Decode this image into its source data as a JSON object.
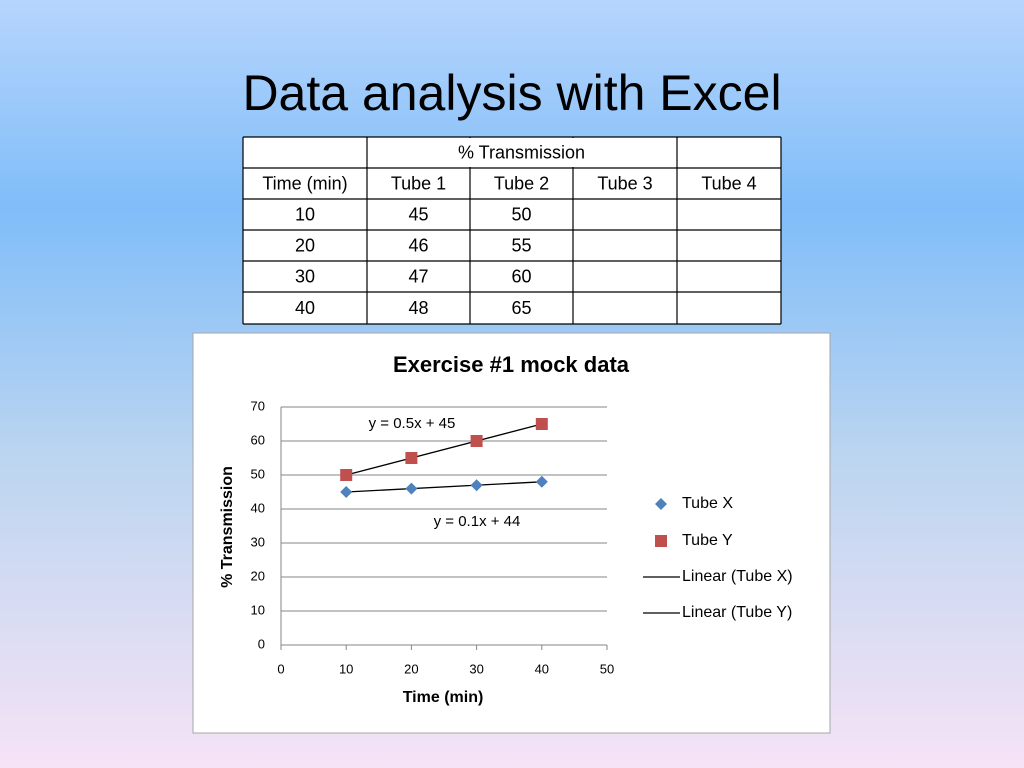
{
  "title": "Data analysis with Excel",
  "table": {
    "group_label": "% Transmission",
    "columns": [
      "Time (min)",
      "Tube 1",
      "Tube 2",
      "Tube 3",
      "Tube 4"
    ],
    "rows": [
      [
        10,
        45,
        50
      ],
      [
        20,
        46,
        55
      ],
      [
        30,
        47,
        60
      ],
      [
        40,
        48,
        65
      ]
    ]
  },
  "chart_data": {
    "type": "scatter",
    "title": "Exercise  #1 mock data",
    "x_label": "Time (min)",
    "y_label": "% Transmission",
    "series": [
      {
        "name": "Tube X",
        "color": "#4f81bd",
        "marker": "diamond",
        "x": [
          10,
          20,
          30,
          40
        ],
        "values": [
          45,
          46,
          47,
          48
        ]
      },
      {
        "name": "Tube Y",
        "color": "#c0504d",
        "marker": "square",
        "x": [
          10,
          20,
          30,
          40
        ],
        "values": [
          50,
          55,
          60,
          65
        ]
      }
    ],
    "trendlines": [
      {
        "name": "Linear (Tube X)",
        "series": 0,
        "label": "y = 0.1x + 44",
        "slope": 0.1,
        "intercept": 44
      },
      {
        "name": "Linear (Tube Y)",
        "series": 1,
        "label": "y = 0.5x + 45",
        "slope": 0.5,
        "intercept": 45
      }
    ],
    "xlim": [
      0,
      50
    ],
    "xticks": [
      0,
      10,
      20,
      30,
      40,
      50
    ],
    "ylim": [
      0,
      70
    ],
    "yticks": [
      0,
      10,
      20,
      30,
      40,
      50,
      60,
      70
    ],
    "grid": true
  }
}
